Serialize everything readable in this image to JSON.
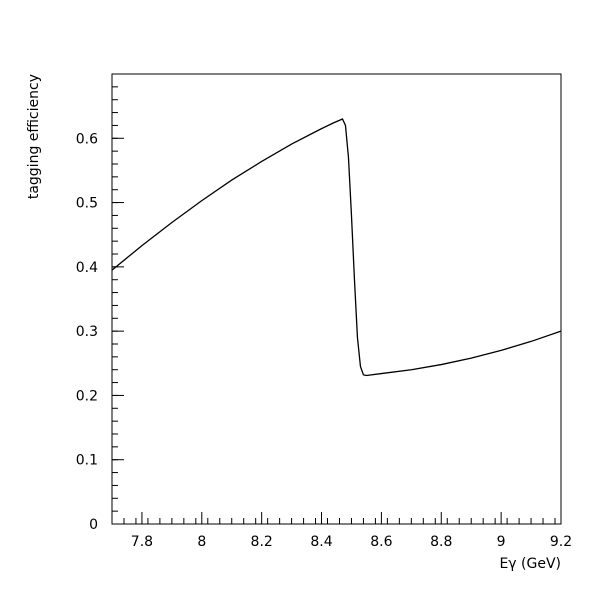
{
  "chart_data": {
    "type": "line",
    "title": "",
    "xlabel": "Eγ (GeV)",
    "ylabel": "tagging efficiency",
    "xlim": [
      7.7,
      9.2
    ],
    "ylim": [
      0,
      0.7
    ],
    "grid": false,
    "x_ticks": [
      {
        "value": 7.8,
        "label": "7.8"
      },
      {
        "value": 8.0,
        "label": "8"
      },
      {
        "value": 8.2,
        "label": "8.2"
      },
      {
        "value": 8.4,
        "label": "8.4"
      },
      {
        "value": 8.6,
        "label": "8.6"
      },
      {
        "value": 8.8,
        "label": "8.8"
      },
      {
        "value": 9.0,
        "label": "9"
      },
      {
        "value": 9.2,
        "label": "9.2"
      }
    ],
    "y_ticks": [
      {
        "value": 0.0,
        "label": "0"
      },
      {
        "value": 0.1,
        "label": "0.1"
      },
      {
        "value": 0.2,
        "label": "0.2"
      },
      {
        "value": 0.3,
        "label": "0.3"
      },
      {
        "value": 0.4,
        "label": "0.4"
      },
      {
        "value": 0.5,
        "label": "0.5"
      },
      {
        "value": 0.6,
        "label": "0.6"
      }
    ],
    "series": [
      {
        "color": "#000000",
        "x": [
          7.7,
          7.8,
          7.9,
          8.0,
          8.1,
          8.2,
          8.3,
          8.4,
          8.44,
          8.47,
          8.48,
          8.49,
          8.5,
          8.51,
          8.52,
          8.53,
          8.54,
          8.55,
          8.6,
          8.7,
          8.8,
          8.9,
          9.0,
          9.1,
          9.2
        ],
        "y": [
          0.395,
          0.433,
          0.469,
          0.503,
          0.535,
          0.564,
          0.591,
          0.615,
          0.624,
          0.63,
          0.62,
          0.57,
          0.48,
          0.38,
          0.29,
          0.245,
          0.232,
          0.231,
          0.234,
          0.24,
          0.248,
          0.258,
          0.27,
          0.284,
          0.3
        ]
      }
    ]
  }
}
